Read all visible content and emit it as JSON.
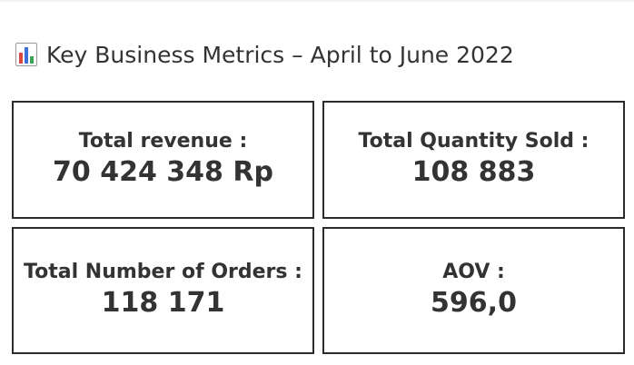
{
  "title": {
    "icon": "bar-chart-icon",
    "text": "Key Business Metrics – April to June 2022"
  },
  "metrics": [
    {
      "label": "Total revenue :",
      "value": "70 424 348 Rp"
    },
    {
      "label": "Total Quantity Sold :",
      "value": "108 883"
    },
    {
      "label": "Total Number of Orders :",
      "value": "118 171"
    },
    {
      "label": "AOV :",
      "value": "596,0"
    }
  ],
  "colors": {
    "text": "#333333",
    "border": "#2b2b2b",
    "background": "#ffffff"
  }
}
